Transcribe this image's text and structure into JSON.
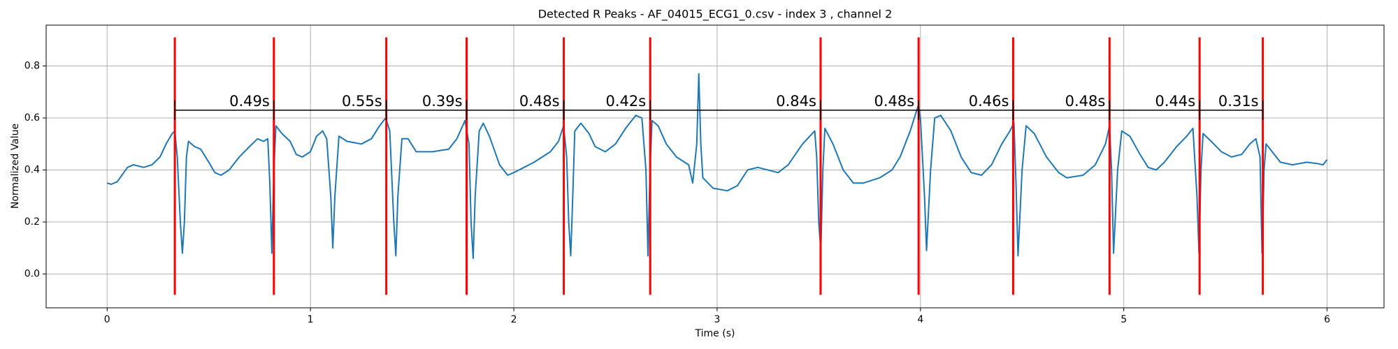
{
  "chart_data": {
    "type": "line",
    "title": "Detected R Peaks - AF_04015_ECG1_0.csv - index 3 , channel 2",
    "xlabel": "Time (s)",
    "ylabel": "Normalized Value",
    "xlim": [
      -0.3,
      6.28
    ],
    "ylim": [
      -0.13,
      0.957
    ],
    "xticks": [
      0,
      1,
      2,
      3,
      4,
      5,
      6
    ],
    "yticks": [
      {
        "value": 0,
        "label": "0.0"
      },
      0.2,
      0.4,
      0.6,
      0.8
    ],
    "grid": true,
    "x": [
      0,
      0.02,
      0.05,
      0.1,
      0.13,
      0.18,
      0.22,
      0.26,
      0.29,
      0.32,
      0.333,
      0.345,
      0.36,
      0.37,
      0.38,
      0.39,
      0.4,
      0.43,
      0.46,
      0.5,
      0.53,
      0.56,
      0.6,
      0.65,
      0.7,
      0.74,
      0.77,
      0.79,
      0.8,
      0.81,
      0.82,
      0.83,
      0.86,
      0.9,
      0.93,
      0.96,
      1.0,
      1.03,
      1.06,
      1.08,
      1.1,
      1.11,
      1.12,
      1.14,
      1.18,
      1.25,
      1.3,
      1.34,
      1.37,
      1.39,
      1.41,
      1.42,
      1.43,
      1.45,
      1.48,
      1.52,
      1.6,
      1.68,
      1.72,
      1.76,
      1.78,
      1.79,
      1.8,
      1.81,
      1.83,
      1.85,
      1.88,
      1.93,
      1.97,
      2.0,
      2.1,
      2.18,
      2.22,
      2.245,
      2.26,
      2.27,
      2.28,
      2.29,
      2.3,
      2.33,
      2.37,
      2.4,
      2.45,
      2.5,
      2.55,
      2.6,
      2.63,
      2.65,
      2.66,
      2.67,
      2.68,
      2.71,
      2.75,
      2.8,
      2.84,
      2.86,
      2.88,
      2.9,
      2.91,
      2.92,
      2.93,
      2.98,
      3.05,
      3.1,
      3.15,
      3.2,
      3.3,
      3.35,
      3.42,
      3.48,
      3.49,
      3.5,
      3.51,
      3.52,
      3.53,
      3.57,
      3.62,
      3.67,
      3.72,
      3.8,
      3.86,
      3.9,
      3.95,
      3.99,
      4.0,
      4.02,
      4.03,
      4.05,
      4.07,
      4.1,
      4.15,
      4.2,
      4.25,
      4.3,
      4.35,
      4.4,
      4.44,
      4.46,
      4.47,
      4.48,
      4.5,
      4.52,
      4.56,
      4.62,
      4.68,
      4.72,
      4.8,
      4.86,
      4.91,
      4.93,
      4.94,
      4.95,
      4.97,
      4.99,
      5.03,
      5.08,
      5.12,
      5.16,
      5.2,
      5.26,
      5.31,
      5.34,
      5.36,
      5.37,
      5.38,
      5.39,
      5.43,
      5.48,
      5.53,
      5.58,
      5.62,
      5.65,
      5.67,
      5.68,
      5.69,
      5.7,
      5.73,
      5.77,
      5.83,
      5.9,
      5.95,
      5.98,
      6.0
    ],
    "series": [
      {
        "color": "#1f77b4",
        "values": [
          0.35,
          0.345,
          0.355,
          0.41,
          0.42,
          0.41,
          0.42,
          0.45,
          0.5,
          0.54,
          0.55,
          0.45,
          0.2,
          0.08,
          0.2,
          0.45,
          0.51,
          0.49,
          0.48,
          0.43,
          0.39,
          0.38,
          0.4,
          0.45,
          0.49,
          0.52,
          0.51,
          0.52,
          0.35,
          0.08,
          0.4,
          0.57,
          0.54,
          0.51,
          0.46,
          0.45,
          0.47,
          0.53,
          0.55,
          0.52,
          0.3,
          0.1,
          0.3,
          0.53,
          0.51,
          0.5,
          0.52,
          0.57,
          0.6,
          0.55,
          0.2,
          0.07,
          0.3,
          0.52,
          0.52,
          0.47,
          0.47,
          0.48,
          0.52,
          0.59,
          0.5,
          0.2,
          0.06,
          0.3,
          0.55,
          0.58,
          0.53,
          0.42,
          0.38,
          0.39,
          0.43,
          0.47,
          0.51,
          0.57,
          0.45,
          0.2,
          0.07,
          0.3,
          0.55,
          0.58,
          0.54,
          0.49,
          0.47,
          0.5,
          0.56,
          0.61,
          0.6,
          0.4,
          0.07,
          0.4,
          0.59,
          0.57,
          0.5,
          0.45,
          0.43,
          0.42,
          0.35,
          0.5,
          0.77,
          0.5,
          0.37,
          0.33,
          0.32,
          0.34,
          0.4,
          0.41,
          0.39,
          0.42,
          0.5,
          0.55,
          0.45,
          0.2,
          0.09,
          0.4,
          0.56,
          0.5,
          0.4,
          0.35,
          0.35,
          0.37,
          0.4,
          0.45,
          0.55,
          0.65,
          0.6,
          0.3,
          0.09,
          0.4,
          0.6,
          0.61,
          0.55,
          0.45,
          0.39,
          0.38,
          0.42,
          0.5,
          0.55,
          0.58,
          0.35,
          0.07,
          0.4,
          0.57,
          0.54,
          0.45,
          0.39,
          0.37,
          0.38,
          0.42,
          0.5,
          0.57,
          0.4,
          0.08,
          0.4,
          0.55,
          0.53,
          0.46,
          0.41,
          0.4,
          0.43,
          0.49,
          0.53,
          0.56,
          0.3,
          0.08,
          0.4,
          0.54,
          0.51,
          0.47,
          0.45,
          0.46,
          0.5,
          0.52,
          0.45,
          0.08,
          0.4,
          0.5,
          0.47,
          0.43,
          0.42,
          0.43,
          0.425,
          0.42,
          0.44
        ]
      }
    ],
    "peaks": {
      "x": [
        0.333,
        0.82,
        1.373,
        1.768,
        2.246,
        2.671,
        3.509,
        3.991,
        4.456,
        4.93,
        5.373,
        5.684
      ],
      "color": "red",
      "ylim": [
        -0.08,
        0.91
      ]
    },
    "intervals": {
      "values": [
        0.49,
        0.55,
        0.39,
        0.48,
        0.42,
        0.84,
        0.48,
        0.46,
        0.48,
        0.44,
        0.31
      ],
      "value_labels": [
        "0.49s",
        "0.55s",
        "0.39s",
        "0.48s",
        "0.42s",
        "0.84s",
        "0.48s",
        "0.46s",
        "0.48s",
        "0.44s",
        "0.31s"
      ],
      "y": 0.63,
      "color": "black"
    }
  }
}
